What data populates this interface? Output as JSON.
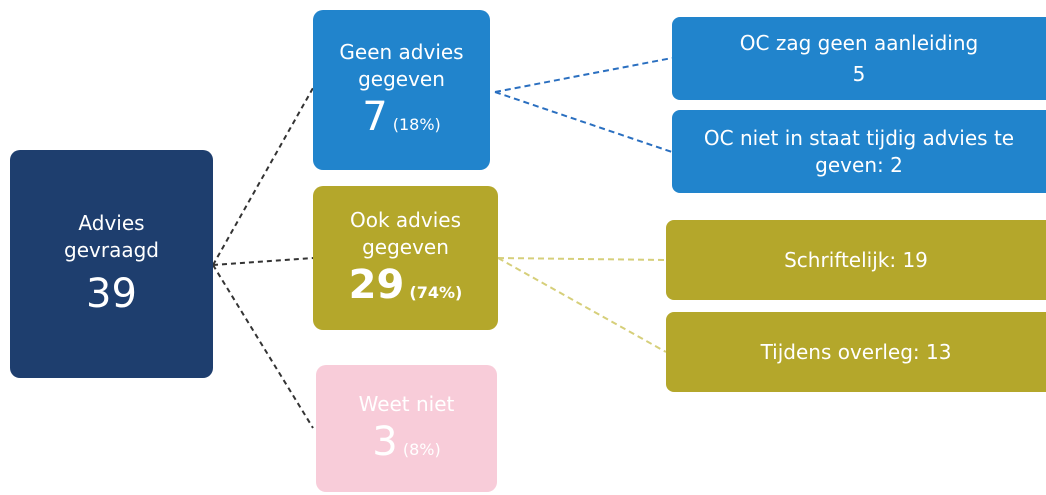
{
  "root": {
    "label": "Advies gevraagd",
    "count": "39"
  },
  "branches": [
    {
      "label": "Geen advies gegeven",
      "count": "7",
      "percent": "(18%)"
    },
    {
      "label": "Ook advies gegeven",
      "count": "29",
      "percent": "(74%)"
    },
    {
      "label": "Weet niet",
      "count": "3",
      "percent": "(8%)"
    }
  ],
  "leaves": [
    {
      "label": "OC zag geen aanleiding",
      "count": "5"
    },
    {
      "label": "OC niet in staat tijdig advies te geven: 2"
    },
    {
      "label": "Schriftelijk: 19"
    },
    {
      "label": "Tijdens overleg: 13"
    }
  ]
}
